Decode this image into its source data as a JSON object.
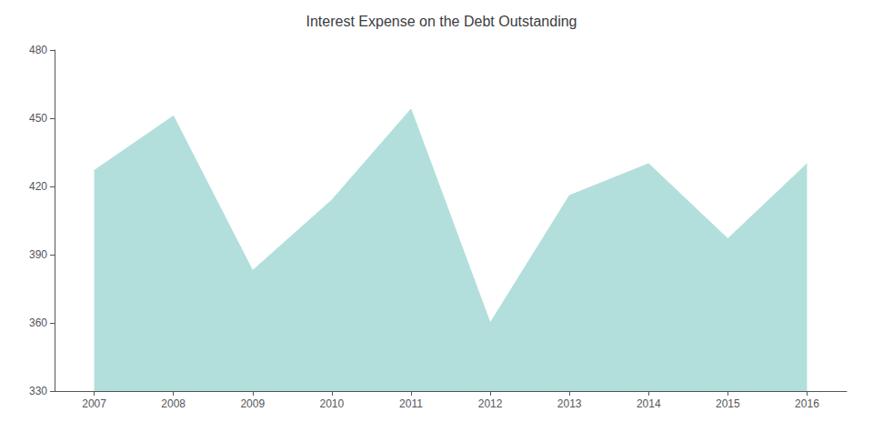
{
  "chart_data": {
    "type": "area",
    "title": "Interest Expense on the Debt Outstanding",
    "x": [
      2007,
      2008,
      2009,
      2010,
      2011,
      2012,
      2013,
      2014,
      2015,
      2016
    ],
    "values": [
      427,
      451,
      383,
      414,
      454,
      360,
      416,
      430,
      397,
      430
    ],
    "color": "#b2dfdb",
    "xlim": [
      2006.5,
      2016.5
    ],
    "xticks": [
      2007,
      2008,
      2009,
      2010,
      2011,
      2012,
      2013,
      2014,
      2015,
      2016
    ],
    "ylim": [
      330,
      480
    ],
    "yticks": [
      330,
      360,
      390,
      420,
      450,
      480
    ],
    "grid": false
  }
}
